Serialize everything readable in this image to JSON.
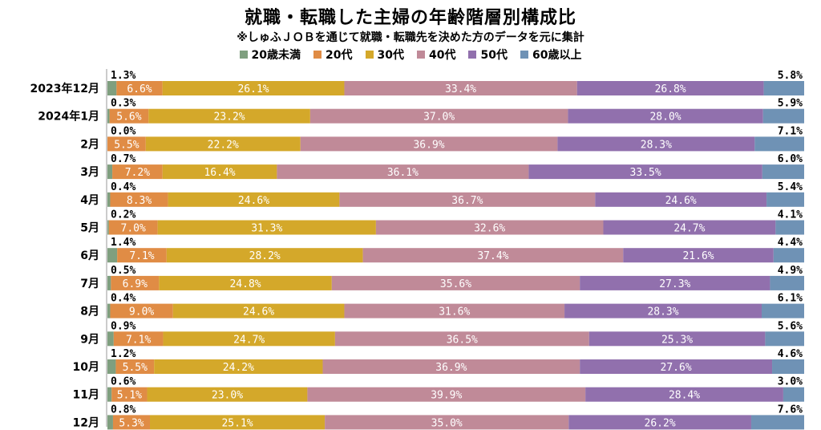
{
  "title": "就職・転職した主婦の年齢階層別構成比",
  "subtitle": "※しゅふＪＯＢを通じて就職・転職先を決めた方のデータを元に集計",
  "chart_data": {
    "type": "bar",
    "orientation": "horizontal",
    "stacked": true,
    "percent": true,
    "categories": [
      "2023年12月",
      "2024年1月",
      "2月",
      "3月",
      "4月",
      "5月",
      "6月",
      "7月",
      "8月",
      "9月",
      "10月",
      "11月",
      "12月"
    ],
    "series": [
      {
        "name": "20歳未満",
        "color": "#7f9f7f",
        "values": [
          1.3,
          0.3,
          0.0,
          0.7,
          0.4,
          0.2,
          1.4,
          0.5,
          0.4,
          0.9,
          1.2,
          0.6,
          0.8
        ]
      },
      {
        "name": "20代",
        "color": "#e08c45",
        "values": [
          6.6,
          5.6,
          5.5,
          7.2,
          8.3,
          7.0,
          7.1,
          6.9,
          9.0,
          7.1,
          5.5,
          5.1,
          5.3
        ]
      },
      {
        "name": "30代",
        "color": "#d4a82a",
        "values": [
          26.1,
          23.2,
          22.2,
          16.4,
          24.6,
          31.3,
          28.2,
          24.8,
          24.6,
          24.7,
          24.2,
          23.0,
          25.1
        ]
      },
      {
        "name": "40代",
        "color": "#c08a98",
        "values": [
          33.4,
          37.0,
          36.9,
          36.1,
          36.7,
          32.6,
          37.4,
          35.6,
          31.6,
          36.5,
          36.9,
          39.9,
          35.0
        ]
      },
      {
        "name": "50代",
        "color": "#9170ad",
        "values": [
          26.8,
          28.0,
          28.3,
          33.5,
          24.6,
          24.7,
          21.6,
          27.3,
          28.3,
          25.3,
          27.6,
          28.4,
          26.2
        ]
      },
      {
        "name": "60歳以上",
        "color": "#6f92b5",
        "values": [
          5.8,
          5.9,
          7.1,
          6.0,
          5.4,
          4.1,
          4.4,
          4.9,
          6.1,
          5.6,
          4.6,
          3.0,
          7.6
        ]
      }
    ],
    "legend_position": "top-center",
    "grid": false,
    "value_format": "0.0%"
  }
}
